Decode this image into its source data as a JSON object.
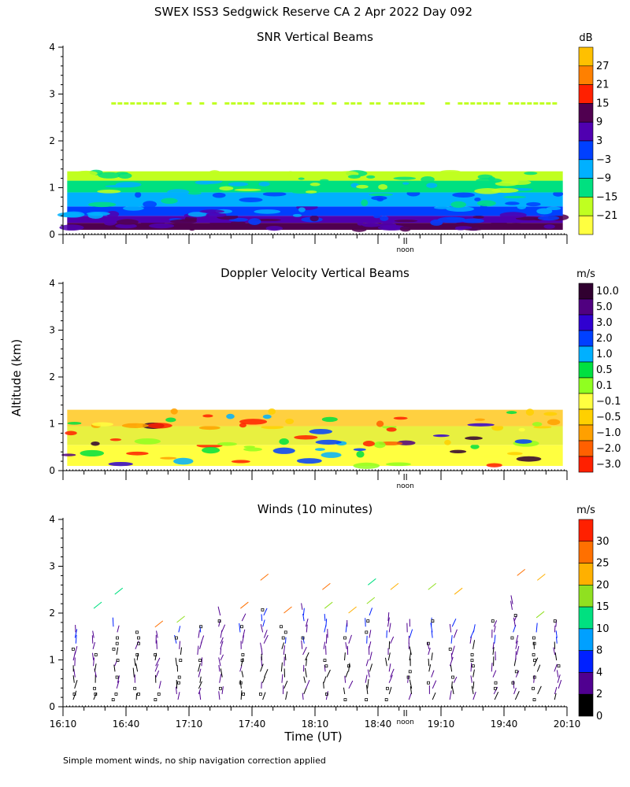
{
  "title": "SWEX ISS3 Sedgwick Reserve CA    2 Apr 2022 Day 092",
  "ylabel": "Altitude (km)",
  "xlabel": "Time (UT)",
  "noon_label": "noon",
  "x_ticks": [
    "16:10",
    "16:40",
    "17:10",
    "17:40",
    "18:10",
    "18:40",
    "19:10",
    "19:40",
    "20:10"
  ],
  "y_ticks": [
    "0",
    "1",
    "2",
    "3",
    "4"
  ],
  "footnote": "Simple moment winds, no ship navigation correction applied",
  "chart_data": [
    {
      "type": "heatmap",
      "title": "SNR Vertical Beams",
      "xlabel": "Time (UT)",
      "ylabel": "Altitude (km)",
      "xlim_minutes_after_16:10": [
        0,
        240
      ],
      "ylim": [
        0,
        4
      ],
      "colorbar": {
        "unit": "dB",
        "labels": [
          "27",
          "21",
          "15",
          "9",
          "3",
          "−3",
          "−9",
          "−15",
          "−21"
        ],
        "colors": [
          "#ffc000",
          "#ff8000",
          "#ff2000",
          "#500050",
          "#5000b0",
          "#0040ff",
          "#00b0ff",
          "#00e080",
          "#c0ff20",
          "#ffff40"
        ]
      },
      "bands": [
        {
          "from_km": 0.1,
          "to_km": 0.25,
          "color": "#500050"
        },
        {
          "from_km": 0.25,
          "to_km": 0.4,
          "color": "#5000b0"
        },
        {
          "from_km": 0.4,
          "to_km": 0.6,
          "color": "#0040ff"
        },
        {
          "from_km": 0.6,
          "to_km": 0.9,
          "color": "#00b0ff"
        },
        {
          "from_km": 0.9,
          "to_km": 1.15,
          "color": "#00e080"
        },
        {
          "from_km": 1.15,
          "to_km": 1.35,
          "color": "#c0ff20"
        }
      ],
      "layer_at_2_8_km": {
        "altitude_km": 2.8,
        "color": "#c0ff20"
      }
    },
    {
      "type": "heatmap",
      "title": "Doppler Velocity Vertical Beams",
      "xlabel": "Time (UT)",
      "ylabel": "Altitude (km)",
      "xlim_minutes_after_16:10": [
        0,
        240
      ],
      "ylim": [
        0,
        4
      ],
      "colorbar": {
        "unit": "m/s",
        "labels": [
          "10.0",
          "5.0",
          "3.0",
          "2.0",
          "1.0",
          "0.5",
          "0.1",
          "−0.1",
          "−0.5",
          "−1.0",
          "−2.0",
          "−3.0"
        ],
        "colors": [
          "#300030",
          "#500080",
          "#3000d0",
          "#0040ff",
          "#00b0ff",
          "#00e040",
          "#90ff20",
          "#ffff40",
          "#ffd000",
          "#ffa000",
          "#ff6000",
          "#ff2000"
        ]
      },
      "bands": [
        {
          "from_km": 0.1,
          "to_km": 0.55,
          "color": "#ffff40"
        },
        {
          "from_km": 0.55,
          "to_km": 0.95,
          "color": "#e8f040"
        },
        {
          "from_km": 0.95,
          "to_km": 1.3,
          "color": "#ffd040"
        }
      ]
    },
    {
      "type": "scatter",
      "title": "Winds (10 minutes)",
      "xlabel": "Time (UT)",
      "ylabel": "Altitude (km)",
      "xlim_minutes_after_16:10": [
        0,
        240
      ],
      "ylim": [
        0,
        4
      ],
      "profile_times_min": [
        5,
        15,
        25,
        35,
        45,
        55,
        65,
        75,
        85,
        95,
        105,
        115,
        125,
        135,
        145,
        155,
        165,
        175,
        185,
        195,
        205,
        215,
        225,
        235
      ],
      "profile_tops_km": [
        1.6,
        1.5,
        1.8,
        1.6,
        1.5,
        1.6,
        1.8,
        2.0,
        1.9,
        2.1,
        1.8,
        2.1,
        1.9,
        1.8,
        2.0,
        1.9,
        1.8,
        1.9,
        1.8,
        1.7,
        1.9,
        2.2,
        1.7,
        1.9
      ],
      "colorbar": {
        "unit": "m/s",
        "labels": [
          "30",
          "25",
          "20",
          "15",
          "10",
          "8",
          "4",
          "2",
          "0"
        ],
        "colors": [
          "#ff2000",
          "#ff7000",
          "#ffb000",
          "#90e020",
          "#00e080",
          "#00a0ff",
          "#0020ff",
          "#500090",
          "#000000"
        ]
      }
    }
  ]
}
